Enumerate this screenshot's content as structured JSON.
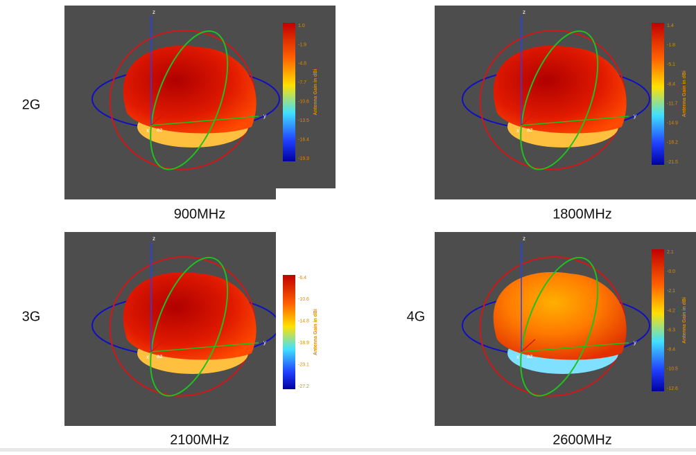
{
  "panels": [
    {
      "label": "2G",
      "caption": "900MHz",
      "colorbar_title": "Antenna Gain in dBi",
      "colorbar_ticks": [
        "1.0",
        "-1.9",
        "-4.8",
        "-7.7",
        "-10.6",
        "-13.5",
        "-16.4",
        "-19.3"
      ]
    },
    {
      "caption": "1800MHz",
      "colorbar_title": "Antenna Gain in dBi",
      "colorbar_ticks": [
        "1.4",
        "-1.8",
        "-5.1",
        "-8.4",
        "-11.7",
        "-14.9",
        "-18.2",
        "-21.5"
      ]
    },
    {
      "label": "3G",
      "caption": "2100MHz",
      "colorbar_title": "Antenna Gain in dBi",
      "colorbar_ticks": [
        "-6.4",
        "-10.6",
        "-14.8",
        "-18.9",
        "-23.1",
        "-27.2"
      ]
    },
    {
      "label": "4G",
      "caption": "2600MHz",
      "colorbar_title": "Antenna Gain in dBi",
      "colorbar_ticks": [
        "2.1",
        "-0.0",
        "-2.1",
        "-4.2",
        "-6.3",
        "-8.4",
        "-10.5",
        "-12.6"
      ]
    }
  ],
  "axis_labels": [
    "z",
    "x",
    "y",
    "az"
  ]
}
